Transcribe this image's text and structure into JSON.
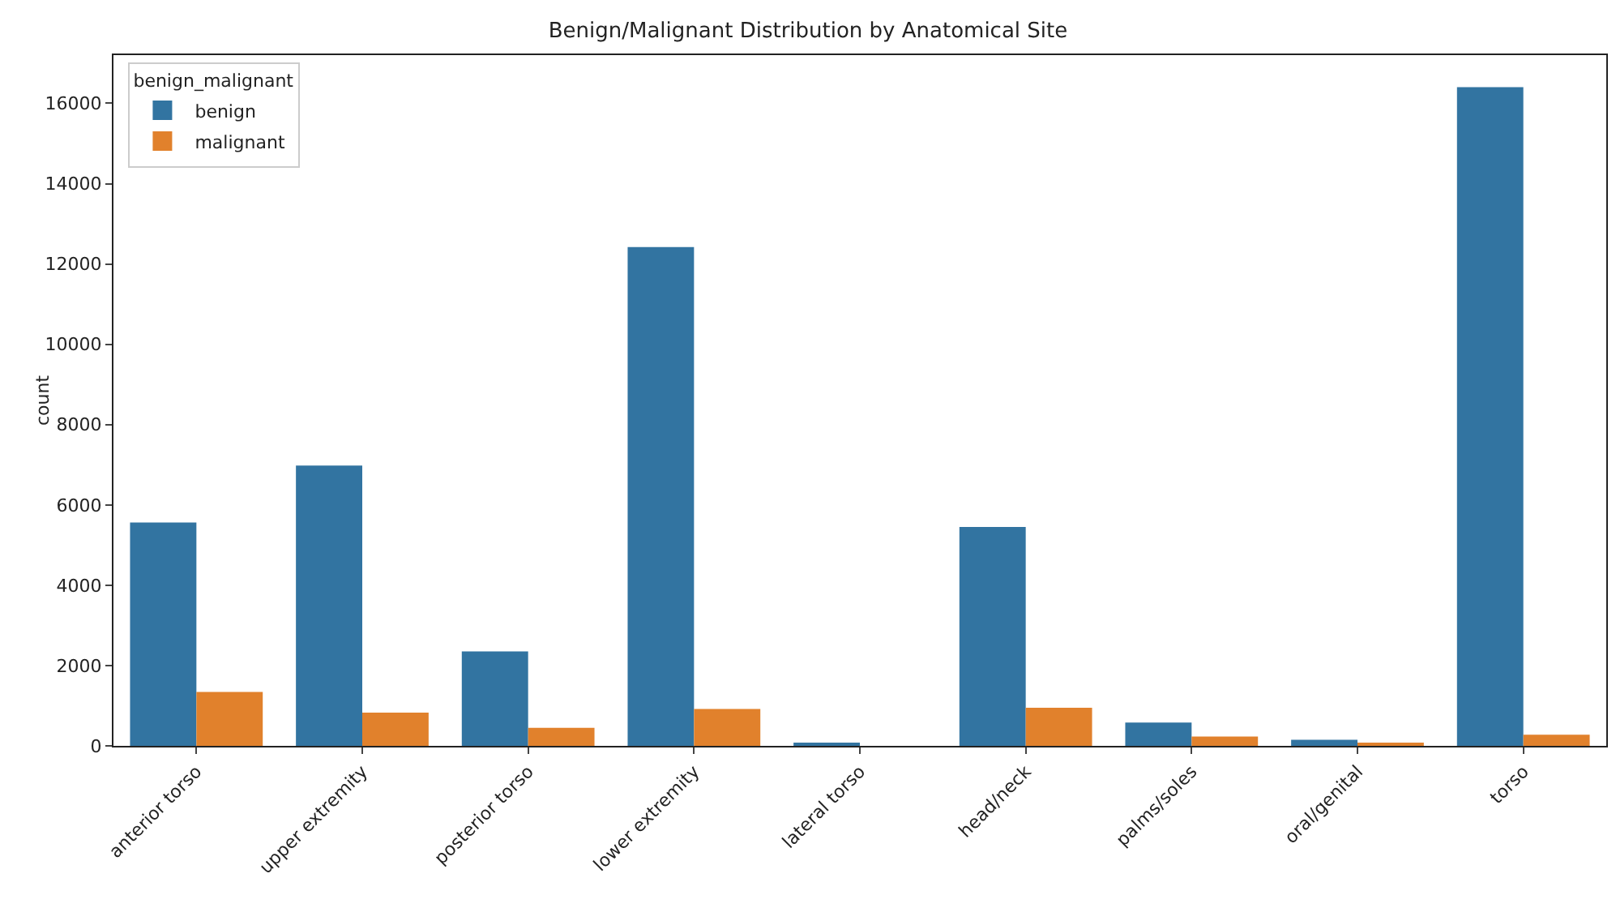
{
  "chart_data": {
    "type": "bar",
    "title": "Benign/Malignant Distribution by Anatomical Site",
    "ylabel": "count",
    "legend_title": "benign_malignant",
    "categories": [
      "anterior torso",
      "upper extremity",
      "posterior torso",
      "lower extremity",
      "lateral torso",
      "head/neck",
      "palms/soles",
      "oral/genital",
      "torso"
    ],
    "series": [
      {
        "name": "benign",
        "color": "#3274a1",
        "values": [
          5560,
          6980,
          2350,
          12420,
          50,
          5450,
          580,
          150,
          16400
        ]
      },
      {
        "name": "malignant",
        "color": "#e1812c",
        "values": [
          1340,
          830,
          450,
          920,
          0,
          950,
          230,
          50,
          280
        ]
      }
    ],
    "ylim": [
      0,
      17200
    ],
    "yticks": [
      0,
      2000,
      4000,
      6000,
      8000,
      10000,
      12000,
      14000,
      16000
    ],
    "grid": false,
    "legend": "top left"
  }
}
